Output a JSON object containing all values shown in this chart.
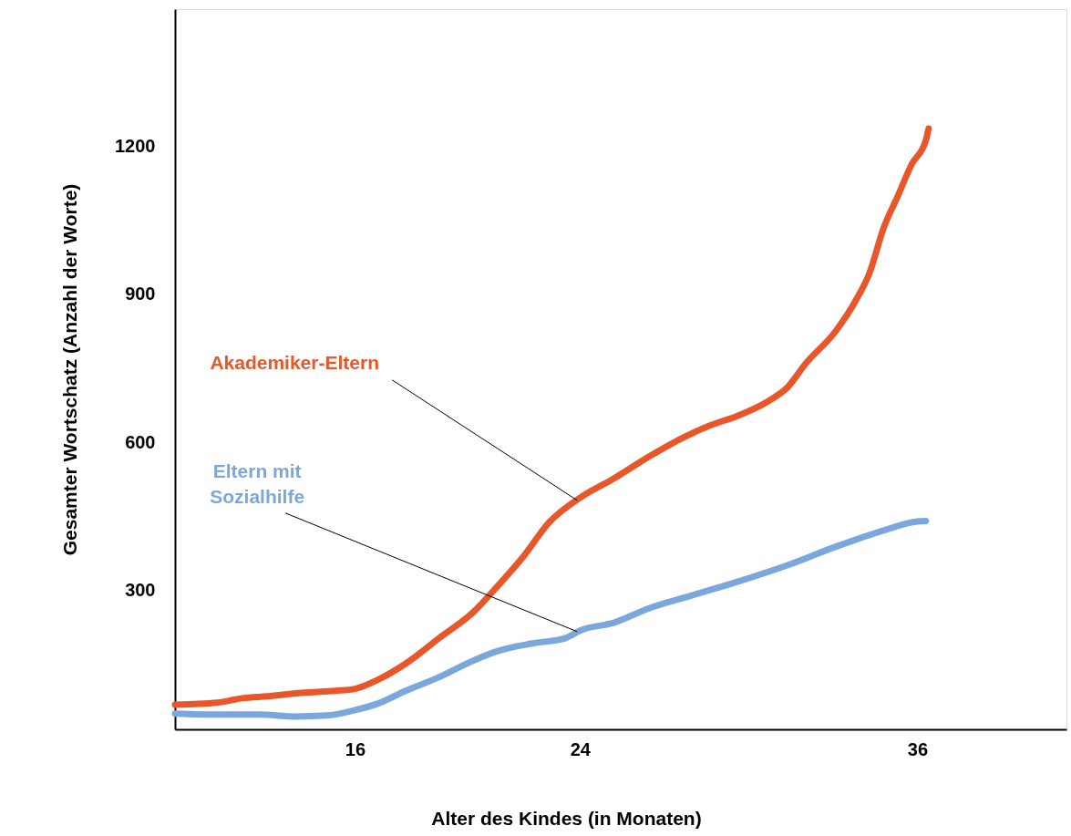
{
  "chart_data": {
    "type": "line",
    "xlabel": "Alter des Kindes (in Monaten)",
    "ylabel": "Gesamter Wortschatz (Anzahl der Worte)",
    "xlim": [
      9.6,
      41.3
    ],
    "xticks": [
      16,
      24,
      36
    ],
    "ylim": [
      19,
      1478
    ],
    "yticks": [
      300,
      600,
      900,
      1200
    ],
    "grid": false,
    "marker": "none",
    "line_style": "solid",
    "series": [
      {
        "color": "#e8562a",
        "x": [
          9.6,
          11.1,
          12.0,
          12.9,
          14.1,
          15.3,
          16,
          16.8,
          17.8,
          19.0,
          20.2,
          21.1,
          22.0,
          22.9,
          24,
          25.2,
          26.5,
          27.6,
          28.6,
          29.6,
          30.7,
          31.4,
          32.0,
          33.1,
          33.8,
          34.3,
          34.8,
          35.3,
          35.8,
          36.3,
          36.4
        ],
        "values": [
          69,
          73,
          82,
          86,
          93,
          97,
          101,
          119,
          152,
          204,
          256,
          311,
          370,
          438,
          488,
          527,
          573,
          608,
          634,
          654,
          684,
          713,
          758,
          826,
          887,
          944,
          1035,
          1099,
          1164,
          1212,
          1236
        ]
      },
      {
        "color": "#7aa7dc",
        "x": [
          9.6,
          11.1,
          12.6,
          13.8,
          15.0,
          16,
          16.8,
          17.8,
          19.0,
          20.2,
          21.1,
          22.3,
          23.5,
          24,
          25.2,
          26.5,
          27.9,
          29.6,
          31.4,
          33.1,
          34.8,
          36.0,
          36.3
        ],
        "values": [
          51,
          49,
          49,
          45,
          47,
          58,
          71,
          97,
          125,
          158,
          178,
          193,
          204,
          219,
          235,
          265,
          289,
          318,
          352,
          389,
          422,
          440,
          441
        ]
      }
    ],
    "annotations": [
      {
        "text": "Akademiker-Eltern",
        "x": 23.9,
        "y": 483
      },
      {
        "text": "Eltern mit\nSozialhilfe",
        "x": 23.9,
        "y": 217
      }
    ]
  }
}
